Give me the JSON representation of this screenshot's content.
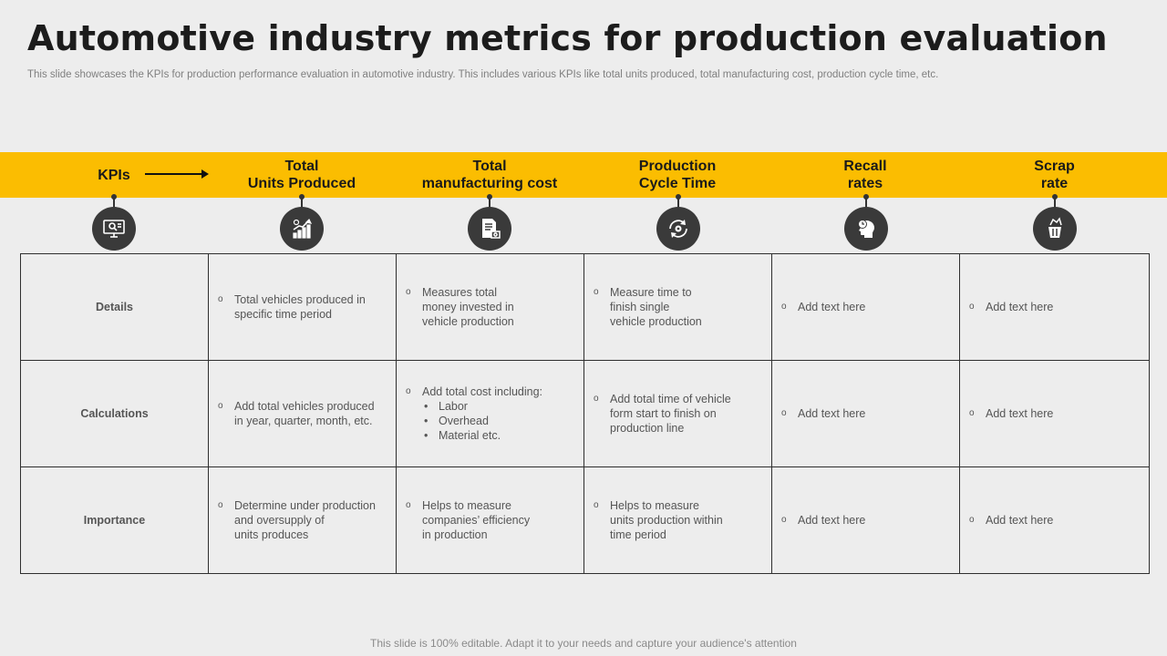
{
  "title": "Automotive industry metrics for production evaluation",
  "subtitle": "This slide showcases the KPIs for production performance evaluation in automotive industry. This includes various KPIs like total units produced, total manufacturing cost, production cycle time, etc.",
  "header": {
    "kpis_label": "KPIs",
    "columns": [
      {
        "label": "Total\nUnits Produced",
        "icon": "production-growth-icon"
      },
      {
        "label": "Total\nmanufacturing cost",
        "icon": "invoice-cost-icon"
      },
      {
        "label": "Production\nCycle Time",
        "icon": "cycle-gear-icon"
      },
      {
        "label": "Recall\nrates",
        "icon": "head-clock-icon"
      },
      {
        "label": "Scrap\nrate",
        "icon": "scrap-bin-icon"
      }
    ],
    "kpis_icon": "monitor-search-icon"
  },
  "rows": [
    {
      "label": "Details",
      "cells": [
        {
          "text": "Total vehicles produced in\nspecific time period"
        },
        {
          "text": "Measures total\nmoney invested in\nvehicle production"
        },
        {
          "text": "Measure time to\nfinish single\nvehicle production"
        },
        {
          "text": "Add text here"
        },
        {
          "text": "Add text here"
        }
      ]
    },
    {
      "label": "Calculations",
      "cells": [
        {
          "text": "Add total vehicles produced\nin year, quarter, month, etc."
        },
        {
          "text": "Add total cost including:",
          "sub": [
            "Labor",
            "Overhead",
            "Material etc."
          ]
        },
        {
          "text": "Add total time of vehicle\nform start to finish on\nproduction line"
        },
        {
          "text": "Add text here"
        },
        {
          "text": "Add text here"
        }
      ]
    },
    {
      "label": "Importance",
      "cells": [
        {
          "text": "Determine under production\nand oversupply of\nunits produces"
        },
        {
          "text": "Helps to measure\ncompanies’ efficiency\nin production"
        },
        {
          "text": "Helps to measure\nunits production within\ntime period"
        },
        {
          "text": "Add text here"
        },
        {
          "text": "Add text here"
        }
      ]
    }
  ],
  "bullet_symbol": "o",
  "footer": "This slide is 100% editable. Adapt it to your needs and capture your audience's attention",
  "colors": {
    "accent": "#fbbd01",
    "icon_bg": "#3a3a3a",
    "background": "#ededed"
  }
}
